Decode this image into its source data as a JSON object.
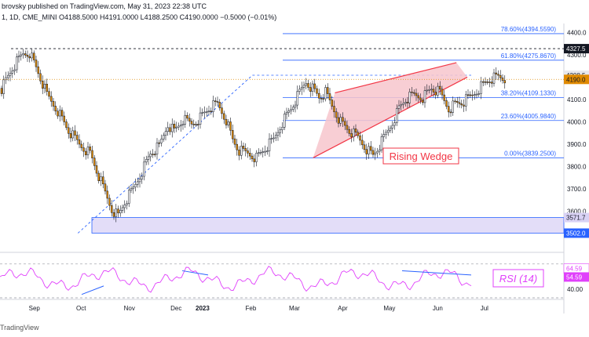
{
  "header": {
    "published": "brovsky published on TradingView.com, May 31, 2023 22:38 UTC",
    "symbol_line": "1, 1D, CME_MINI  O4188.5000  H4191.0000  L4188.2500  C4190.0000  −0.5000 (−0.01%)"
  },
  "footer": {
    "brand": "TradingView"
  },
  "colors": {
    "up": "#26a69a",
    "down": "#e08a00",
    "fib": "#2962ff",
    "wedge": "#f23645",
    "wedge_fill": "#f7c6cc",
    "zone_fill": "#d9d2f5",
    "rsi": "#e040fb"
  },
  "chart_data": [
    {
      "type": "candlestick",
      "title": "",
      "xlabel": "",
      "ylabel": "",
      "ylim": [
        3430,
        4440
      ],
      "x_ticks": [
        "Sep",
        "Oct",
        "Nov",
        "Dec",
        "2023",
        "Feb",
        "Mar",
        "Apr",
        "May",
        "Jun",
        "Jul"
      ],
      "y_ticks": [
        3500,
        3600,
        3700,
        3800,
        3900,
        4000,
        4100,
        4200,
        4300,
        4400
      ],
      "price_tags": [
        {
          "text": "4327.5",
          "value": 4327.5
        },
        {
          "text": "4208.5",
          "value": 4208.5
        },
        {
          "text": "4190.0",
          "value": 4190.0
        },
        {
          "text": "3571.7",
          "value": 3571.7
        },
        {
          "text": "3502.0",
          "value": 3502.0
        }
      ],
      "fib_levels": [
        {
          "label": "78.60%(4394.5590)",
          "value": 4394.559
        },
        {
          "label": "61.80%(4275.8670)",
          "value": 4275.867
        },
        {
          "label": "38.20%(4109.1330)",
          "value": 4109.133
        },
        {
          "label": "23.60%(4005.9840)",
          "value": 4005.984
        },
        {
          "label": "0.00%(3839.2500)",
          "value": 3839.25
        }
      ],
      "resistance_level": 4327.5,
      "support_zone": [
        3502.0,
        3571.7
      ],
      "annotation": "Rising Wedge",
      "path_points": [
        [
          0,
          4150
        ],
        [
          5,
          4240
        ],
        [
          10,
          4305
        ],
        [
          13,
          4310
        ],
        [
          17,
          4220
        ],
        [
          21,
          4120
        ],
        [
          26,
          4050
        ],
        [
          31,
          3960
        ],
        [
          36,
          3900
        ],
        [
          41,
          3860
        ],
        [
          46,
          3730
        ],
        [
          51,
          3610
        ],
        [
          54,
          3580
        ],
        [
          57,
          3640
        ],
        [
          61,
          3700
        ],
        [
          65,
          3780
        ],
        [
          69,
          3860
        ],
        [
          73,
          3890
        ],
        [
          77,
          3990
        ],
        [
          80,
          3960
        ],
        [
          84,
          4010
        ],
        [
          88,
          3990
        ],
        [
          92,
          4020
        ],
        [
          96,
          4060
        ],
        [
          100,
          4080
        ],
        [
          104,
          4010
        ],
        [
          107,
          3920
        ],
        [
          110,
          3870
        ],
        [
          114,
          3860
        ],
        [
          118,
          3840
        ],
        [
          122,
          3880
        ],
        [
          126,
          3920
        ],
        [
          130,
          4000
        ],
        [
          134,
          4060
        ],
        [
          138,
          4130
        ],
        [
          141,
          4180
        ],
        [
          144,
          4150
        ],
        [
          147,
          4110
        ],
        [
          150,
          4130
        ],
        [
          153,
          4070
        ],
        [
          157,
          4000
        ],
        [
          161,
          3960
        ],
        [
          165,
          3930
        ],
        [
          169,
          3880
        ],
        [
          172,
          3850
        ],
        [
          176,
          3910
        ],
        [
          180,
          3980
        ],
        [
          184,
          4060
        ],
        [
          187,
          4100
        ],
        [
          191,
          4120
        ],
        [
          195,
          4110
        ],
        [
          199,
          4150
        ],
        [
          203,
          4130
        ],
        [
          207,
          4060
        ],
        [
          210,
          4080
        ],
        [
          214,
          4090
        ],
        [
          218,
          4120
        ],
        [
          222,
          4160
        ],
        [
          226,
          4190
        ],
        [
          230,
          4200
        ],
        [
          233,
          4190
        ]
      ],
      "wedge": {
        "upper": [
          [
            "2023-03-27",
            4130
          ],
          [
            "2023-06-13",
            4265
          ]
        ],
        "lower": [
          [
            "2023-03-13",
            3839.25
          ],
          [
            "2023-06-20",
            4200
          ]
        ]
      },
      "swing_line": [
        [
          "2022-10-13",
          3502.0
        ],
        [
          "2023-02-02",
          4208.5
        ]
      ]
    },
    {
      "type": "line",
      "title": "RSI (14)",
      "series": [
        {
          "name": "RSI (14)",
          "last": 54.59
        }
      ],
      "ylim": [
        30,
        80
      ],
      "y_ticks": [
        40.0,
        60.0
      ],
      "tags": [
        {
          "text": "64.59",
          "value": 64.59
        },
        {
          "text": "54.59",
          "value": 54.59
        }
      ],
      "guides": [
        70,
        30
      ],
      "divergence_lines": [
        {
          "from": [
            104,
            34
          ],
          "to": [
            132,
            44
          ]
        },
        {
          "from": [
            232,
            62
          ],
          "to": [
            265,
            57
          ]
        },
        {
          "from": [
            512,
            62
          ],
          "to": [
            600,
            57
          ]
        }
      ]
    }
  ]
}
